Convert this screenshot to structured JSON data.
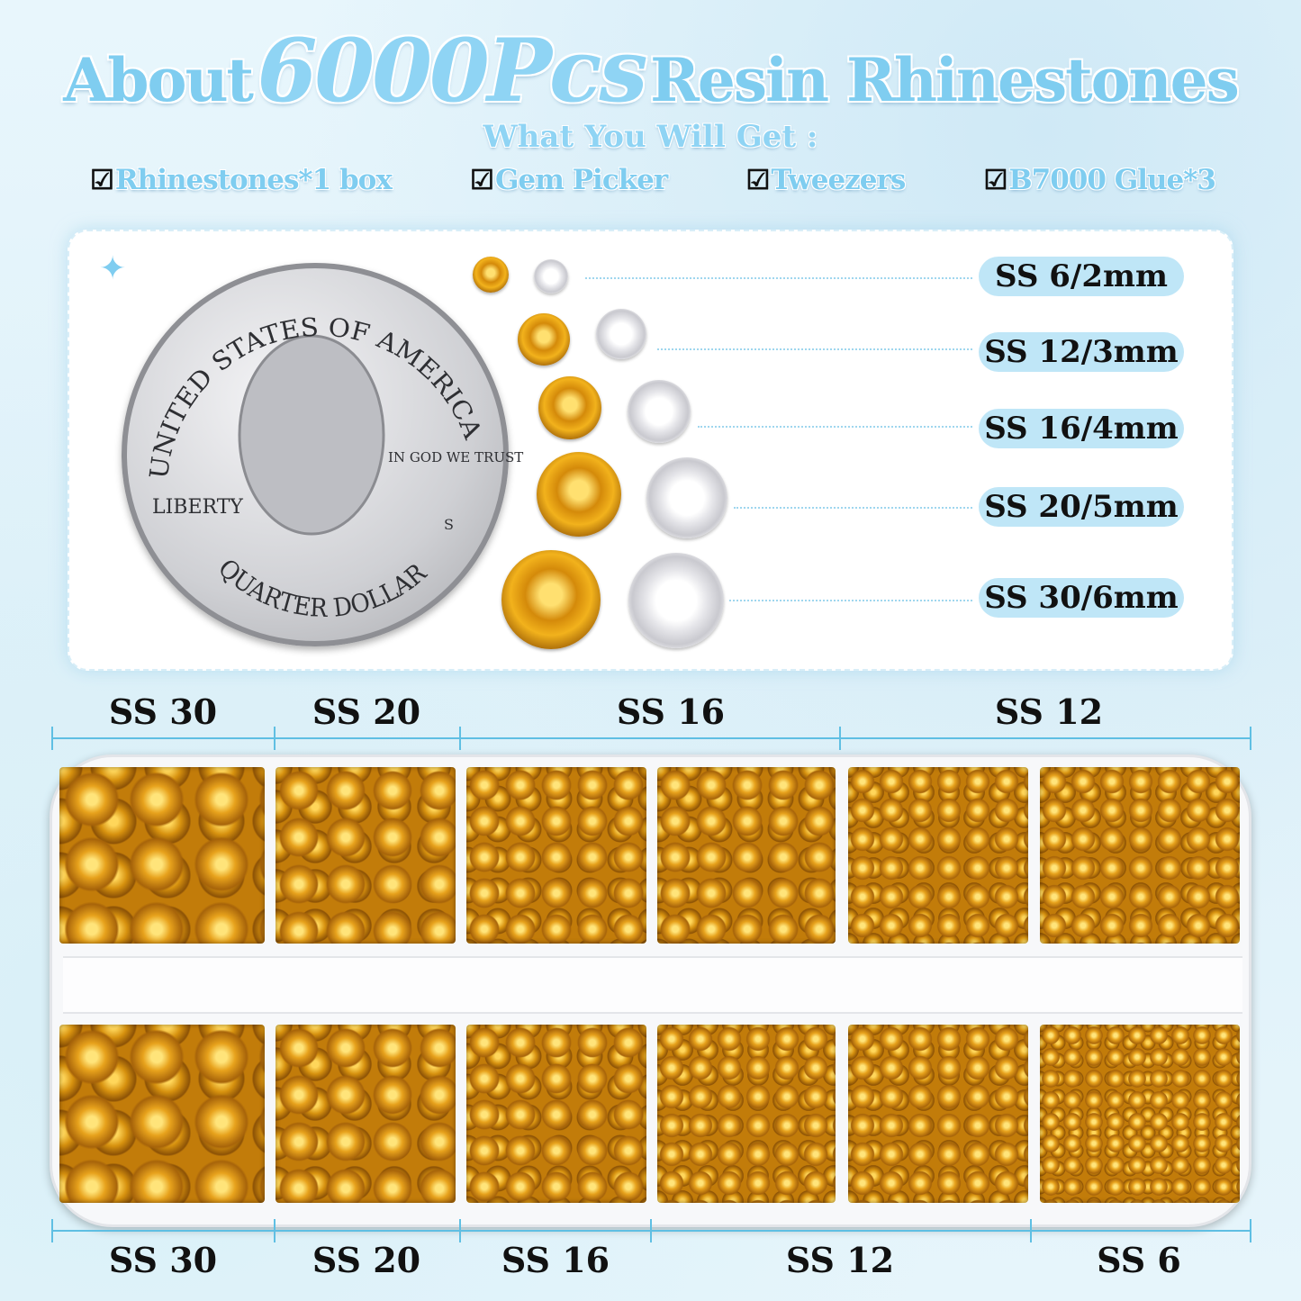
{
  "title": {
    "prefix": "About",
    "count": "6000Pcs",
    "suffix": "Resin Rhinestones"
  },
  "subtitle": "What You Will Get :",
  "contents": [
    {
      "check": "☑",
      "label": "Rhinestones*1 box"
    },
    {
      "check": "☑",
      "label": "Gem Picker"
    },
    {
      "check": "☑",
      "label": "Tweezers"
    },
    {
      "check": "☑",
      "label": "B7000 Glue*3"
    }
  ],
  "coin": {
    "top_text": "UNITED STATES OF AMERICA",
    "motto": "IN GOD WE TRUST",
    "left_text": "LIBERTY",
    "bottom_text": "QUARTER DOLLAR",
    "mint": "S"
  },
  "size_chart": [
    "SS 6/2mm",
    "SS 12/3mm",
    "SS 16/4mm",
    "SS 20/5mm",
    "SS 30/6mm"
  ],
  "tray_top_labels": [
    "SS 30",
    "SS 20",
    "SS 16",
    "SS 12"
  ],
  "tray_bottom_labels": [
    "SS 30",
    "SS 20",
    "SS 16",
    "SS 12",
    "SS 6"
  ],
  "colors": {
    "accent": "#7fcdf0",
    "stone": "#e7a21c",
    "pill": "#bfe6f7"
  }
}
